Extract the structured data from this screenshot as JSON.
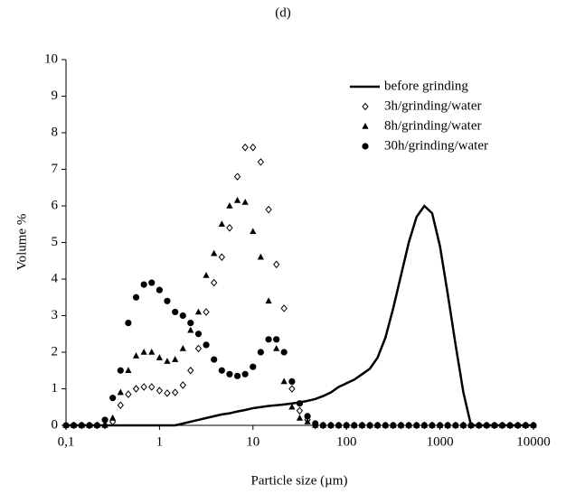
{
  "chart_data": {
    "type": "line",
    "title": "(d)",
    "x_label": "Particle size (µm)",
    "y_label": "Volume %",
    "xscale": "log",
    "xlim": [
      0.1,
      10000
    ],
    "xticks": [
      {
        "value": 0.1,
        "label": "0,1"
      },
      1,
      10,
      100,
      1000,
      10000
    ],
    "ylim": [
      0,
      10
    ],
    "yticks": [
      0,
      1,
      2,
      3,
      4,
      5,
      6,
      7,
      8,
      9,
      10
    ],
    "grid": false,
    "legend": "upper right",
    "x": [
      0.1,
      0.121,
      0.147,
      0.178,
      0.215,
      0.261,
      0.316,
      0.383,
      0.464,
      0.562,
      0.681,
      0.825,
      1,
      1.21,
      1.47,
      1.78,
      2.15,
      2.61,
      3.16,
      3.83,
      4.64,
      5.62,
      6.81,
      8.25,
      10,
      12.1,
      14.7,
      17.8,
      21.5,
      26.1,
      31.6,
      38.3,
      46.4,
      56.2,
      68.1,
      82.5,
      100,
      121,
      147,
      178,
      215,
      261,
      316,
      383,
      464,
      562,
      681,
      825,
      1000,
      1210,
      1470,
      1780,
      2150,
      2610,
      3160,
      3830,
      4640,
      5620,
      6810,
      8250,
      10000
    ],
    "series": [
      {
        "name": "before grinding",
        "color": "#000000",
        "style": "line",
        "values": [
          0,
          0,
          0,
          0,
          0,
          0,
          0,
          0,
          0,
          0,
          0,
          0,
          0,
          0,
          0,
          0.05,
          0.1,
          0.15,
          0.2,
          0.25,
          0.3,
          0.33,
          0.38,
          0.42,
          0.47,
          0.5,
          0.53,
          0.55,
          0.57,
          0.6,
          0.63,
          0.67,
          0.72,
          0.8,
          0.9,
          1.05,
          1.15,
          1.25,
          1.4,
          1.55,
          1.85,
          2.4,
          3.2,
          4.1,
          5.0,
          5.7,
          6.0,
          5.8,
          4.9,
          3.6,
          2.2,
          0.9,
          0,
          0,
          0,
          0,
          0,
          0,
          0,
          0,
          0
        ]
      },
      {
        "name": "3h/grinding/water",
        "color": "#000000",
        "style": "diamond-open",
        "values": [
          0,
          0,
          0,
          0,
          0,
          0,
          0.1,
          0.55,
          0.85,
          1.0,
          1.05,
          1.05,
          0.95,
          0.88,
          0.9,
          1.1,
          1.5,
          2.1,
          3.1,
          3.9,
          4.6,
          5.4,
          6.8,
          7.6,
          7.6,
          7.2,
          5.9,
          4.4,
          3.2,
          1.0,
          0.4,
          0.15,
          0,
          0,
          0,
          0,
          0,
          0,
          0,
          0,
          0,
          0,
          0,
          0,
          0,
          0,
          0,
          0,
          0,
          0,
          0,
          0,
          0,
          0,
          0,
          0,
          0,
          0,
          0,
          0,
          0
        ]
      },
      {
        "name": "8h/grinding/water",
        "color": "#000000",
        "style": "triangle",
        "values": [
          0,
          0,
          0,
          0,
          0,
          0,
          0.2,
          0.9,
          1.5,
          1.9,
          2.0,
          2.0,
          1.85,
          1.75,
          1.8,
          2.1,
          2.6,
          3.1,
          4.1,
          4.7,
          5.5,
          6.0,
          6.15,
          6.1,
          5.3,
          4.6,
          3.4,
          2.1,
          1.2,
          0.5,
          0.2,
          0.1,
          0,
          0,
          0,
          0,
          0,
          0,
          0,
          0,
          0,
          0,
          0,
          0,
          0,
          0,
          0,
          0,
          0,
          0,
          0,
          0,
          0,
          0,
          0,
          0,
          0,
          0,
          0,
          0,
          0
        ]
      },
      {
        "name": "30h/grinding/water",
        "color": "#000000",
        "style": "circle",
        "values": [
          0,
          0,
          0,
          0,
          0,
          0.15,
          0.75,
          1.5,
          2.8,
          3.5,
          3.85,
          3.9,
          3.7,
          3.4,
          3.1,
          3.0,
          2.8,
          2.5,
          2.2,
          1.8,
          1.5,
          1.4,
          1.35,
          1.4,
          1.6,
          2.0,
          2.35,
          2.35,
          2.0,
          1.2,
          0.6,
          0.25,
          0.05,
          0,
          0,
          0,
          0,
          0,
          0,
          0,
          0,
          0,
          0,
          0,
          0,
          0,
          0,
          0,
          0,
          0,
          0,
          0,
          0,
          0,
          0,
          0,
          0,
          0,
          0,
          0,
          0
        ]
      }
    ]
  }
}
